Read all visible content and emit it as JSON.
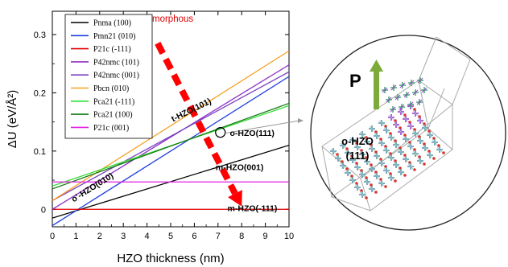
{
  "chart_data": {
    "type": "line",
    "xlabel": "HZO thickness (nm)",
    "ylabel": "ΔU (eV/Å²)",
    "xlim": [
      0,
      10
    ],
    "ylim": [
      -0.03,
      0.34
    ],
    "x_ticks": [
      "0",
      "1",
      "2",
      "3",
      "4",
      "5",
      "6",
      "7",
      "8",
      "9",
      "10"
    ],
    "y_ticks": [
      "0",
      "0.1",
      "0.2",
      "0.3"
    ],
    "grid": false,
    "legend_position": "top-left",
    "series": [
      {
        "name": "Pnma (100)",
        "color": "#000000",
        "x": [
          0,
          10
        ],
        "y": [
          -0.015,
          0.11
        ]
      },
      {
        "name": "Pmn21 (010)",
        "color": "#1f3fdd",
        "x": [
          0,
          10
        ],
        "y": [
          -0.028,
          0.228
        ]
      },
      {
        "name": "P21c (-111)",
        "color": "#e00000",
        "x": [
          0,
          10
        ],
        "y": [
          0.0,
          0.0
        ]
      },
      {
        "name": "P42nmc (101)",
        "color": "#8c2fc8",
        "x": [
          0,
          10
        ],
        "y": [
          0.0,
          0.248
        ]
      },
      {
        "name": "P42nmc (001)",
        "color": "#7a45c0",
        "x": [
          0,
          10
        ],
        "y": [
          0.015,
          0.236
        ]
      },
      {
        "name": "Pbcn (010)",
        "color": "#f7a020",
        "x": [
          0,
          10
        ],
        "y": [
          0.015,
          0.272
        ]
      },
      {
        "name": "Pca21 (-111)",
        "color": "#33dd33",
        "x": [
          0,
          10
        ],
        "y": [
          0.04,
          0.178
        ]
      },
      {
        "name": "Pca21 (100)",
        "color": "#157a15",
        "x": [
          0,
          10
        ],
        "y": [
          0.035,
          0.182
        ]
      },
      {
        "name": "P21c (001)",
        "color": "#e020e0",
        "x": [
          0,
          10
        ],
        "y": [
          0.047,
          0.047
        ]
      }
    ],
    "annotations": [
      {
        "text": "amorphous",
        "x": 4.0,
        "y": 0.322
      },
      {
        "text": "t-HZO(101)",
        "x": 5.1,
        "y": 0.15
      },
      {
        "text": "o-HZO(111)",
        "x": 7.5,
        "y": 0.126
      },
      {
        "text": "o'-HZO(010)",
        "x": 1.0,
        "y": 0.04
      },
      {
        "text": "m-HZO(001)",
        "x": 6.9,
        "y": 0.067
      },
      {
        "text": "m-HZO(-111)",
        "x": 7.4,
        "y": -0.003
      }
    ],
    "arrow": {
      "from_x": 4.45,
      "from_y": 0.285,
      "to_x": 8.0,
      "to_y": 0.005,
      "color": "#ff0000"
    },
    "marker_circle": {
      "x": 7.1,
      "y": 0.132
    }
  },
  "inset": {
    "polarization_label": "P",
    "phase_label_line1": "o-HZO",
    "phase_label_line2": "(111)"
  }
}
